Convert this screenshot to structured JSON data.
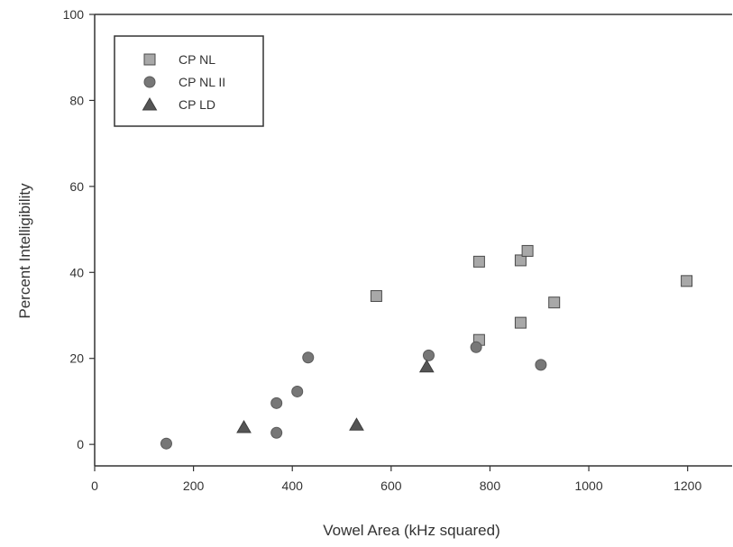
{
  "chart_data": {
    "type": "scatter",
    "title": "",
    "xlabel": "Vowel Area (kHz squared)",
    "ylabel": "Percent Intelligibility",
    "xlim": [
      0,
      1290
    ],
    "ylim": [
      -5,
      100
    ],
    "x_ticks": [
      0,
      200,
      400,
      600,
      800,
      1000,
      1200
    ],
    "y_ticks": [
      0,
      20,
      40,
      60,
      80,
      100
    ],
    "x_tick_labels": [
      "0",
      "200",
      "400",
      "600",
      "800",
      "1000",
      "1200"
    ],
    "y_tick_labels": [
      "0",
      "20",
      "40",
      "60",
      "80",
      "100"
    ],
    "grid": false,
    "legend_position": "top-left",
    "series": [
      {
        "name": "CP NL",
        "marker": "square",
        "color": "#a8a8a8",
        "points": [
          {
            "x": 570,
            "y": 34.5
          },
          {
            "x": 778,
            "y": 42.5
          },
          {
            "x": 778,
            "y": 24.3
          },
          {
            "x": 862,
            "y": 42.8
          },
          {
            "x": 876,
            "y": 45
          },
          {
            "x": 862,
            "y": 28.3
          },
          {
            "x": 930,
            "y": 33
          },
          {
            "x": 1198,
            "y": 38
          }
        ]
      },
      {
        "name": "CP NL II",
        "marker": "circle",
        "color": "#777777",
        "points": [
          {
            "x": 145,
            "y": 0.2
          },
          {
            "x": 368,
            "y": 9.6
          },
          {
            "x": 368,
            "y": 2.7
          },
          {
            "x": 410,
            "y": 12.3
          },
          {
            "x": 432,
            "y": 20.2
          },
          {
            "x": 676,
            "y": 20.7
          },
          {
            "x": 772,
            "y": 22.6
          },
          {
            "x": 903,
            "y": 18.5
          }
        ]
      },
      {
        "name": "CP LD",
        "marker": "triangle",
        "color": "#555555",
        "points": [
          {
            "x": 302,
            "y": 4
          },
          {
            "x": 530,
            "y": 4.6
          },
          {
            "x": 672,
            "y": 18.1
          }
        ]
      }
    ]
  }
}
